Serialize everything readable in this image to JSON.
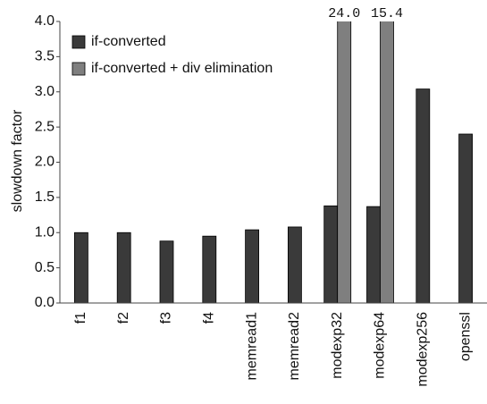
{
  "chart_data": {
    "type": "bar",
    "ylabel": "slowdown factor",
    "categories": [
      "f1",
      "f2",
      "f3",
      "f4",
      "memread1",
      "memread2",
      "modexp32",
      "modexp64",
      "modexp256",
      "openssl"
    ],
    "series": [
      {
        "name": "if-converted",
        "color": "#3a3a3a",
        "values": [
          1.0,
          1.0,
          0.88,
          0.95,
          1.04,
          1.08,
          1.38,
          1.37,
          3.04,
          2.4
        ]
      },
      {
        "name": "if-converted + div elimination",
        "color": "#7f7f7f",
        "values": [
          null,
          null,
          null,
          null,
          null,
          null,
          24.0,
          15.4,
          null,
          null
        ],
        "value_labels": [
          null,
          null,
          null,
          null,
          null,
          null,
          "24.0",
          "15.4",
          null,
          null
        ]
      }
    ],
    "ylim": [
      0,
      4
    ],
    "yticks": [
      {
        "value": 0,
        "label": "0.0"
      },
      0.5,
      {
        "value": 1,
        "label": "1.0"
      },
      1.5,
      {
        "value": 2,
        "label": "2.0"
      },
      2.5,
      {
        "value": 3,
        "label": "3.0"
      },
      3.5,
      {
        "value": 4,
        "label": "4.0"
      }
    ],
    "grid": false,
    "legend": "upper left"
  }
}
